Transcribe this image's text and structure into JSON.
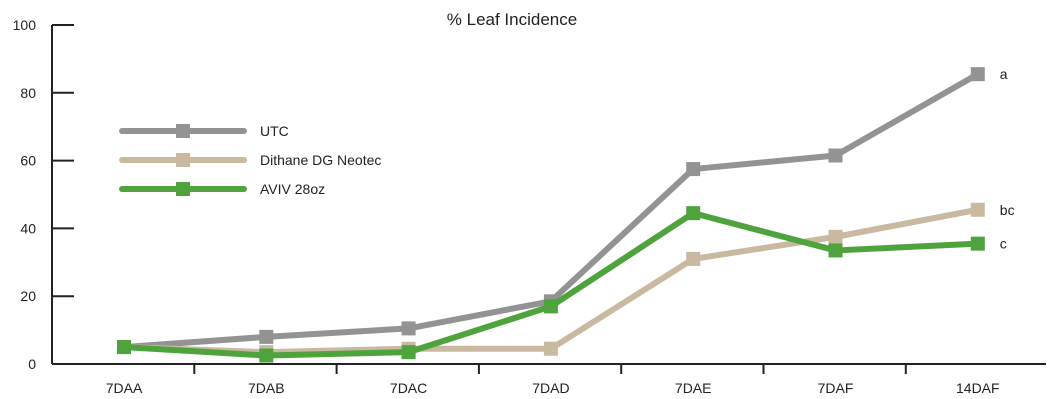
{
  "chart_data": {
    "type": "line",
    "title": "% Leaf Incidence",
    "xlabel": "",
    "ylabel": "",
    "categories": [
      "7DAA",
      "7DAB",
      "7DAC",
      "7DAD",
      "7DAE",
      "7DAF",
      "14DAF"
    ],
    "y_ticks": [
      "0",
      "20",
      "40",
      "60",
      "80",
      "100"
    ],
    "ylim": [
      0,
      100
    ],
    "grid": false,
    "legend_position": "left",
    "series": [
      {
        "name": "UTC",
        "color": "#939393",
        "values": [
          5,
          8,
          10.5,
          18.5,
          57.5,
          61.5,
          85.5
        ],
        "end_label": "a"
      },
      {
        "name": "Dithane DG Neotec",
        "color": "#c8b9a0",
        "values": [
          5,
          3.5,
          4.5,
          4.5,
          31,
          37.5,
          45.5
        ],
        "end_label": "bc"
      },
      {
        "name": "AVIV 28oz",
        "color": "#4ea33d",
        "values": [
          5,
          2.5,
          3.5,
          17,
          44.5,
          33.5,
          35.5
        ],
        "end_label": "c"
      }
    ]
  }
}
